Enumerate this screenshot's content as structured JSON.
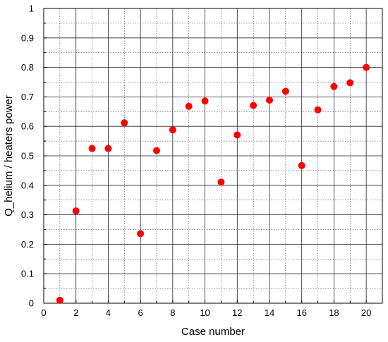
{
  "chart_data": {
    "type": "scatter",
    "title": "",
    "xlabel": "Case number",
    "ylabel": "Q_helium / heaters power",
    "xlim": [
      0,
      21
    ],
    "ylim": [
      0,
      1
    ],
    "x_major_ticks": [
      0,
      2,
      4,
      6,
      8,
      10,
      12,
      14,
      16,
      18,
      20
    ],
    "x_minor_ticks": [
      1,
      3,
      5,
      7,
      9,
      11,
      13,
      15,
      17,
      19,
      21
    ],
    "x_tick_labels": [
      "0",
      "2",
      "4",
      "6",
      "8",
      "10",
      "12",
      "14",
      "16",
      "18",
      "20"
    ],
    "y_major_ticks": [
      0,
      0.1,
      0.2,
      0.3,
      0.4,
      0.5,
      0.6,
      0.7,
      0.8,
      0.9,
      1
    ],
    "y_minor_ticks": [
      0.05,
      0.15,
      0.25,
      0.35,
      0.45,
      0.55,
      0.65,
      0.75,
      0.85,
      0.95
    ],
    "y_tick_labels": [
      "0",
      "0.1",
      "0.2",
      "0.3",
      "0.4",
      "0.5",
      "0.6",
      "0.7",
      "0.8",
      "0.9",
      "1"
    ],
    "grid": true,
    "marker_color": "#ff0000",
    "points": [
      {
        "x": 1,
        "y": 0.01
      },
      {
        "x": 2,
        "y": 0.313
      },
      {
        "x": 3,
        "y": 0.525
      },
      {
        "x": 4,
        "y": 0.525
      },
      {
        "x": 5,
        "y": 0.612
      },
      {
        "x": 6,
        "y": 0.236
      },
      {
        "x": 7,
        "y": 0.518
      },
      {
        "x": 8,
        "y": 0.588
      },
      {
        "x": 9,
        "y": 0.668
      },
      {
        "x": 10,
        "y": 0.686
      },
      {
        "x": 11,
        "y": 0.411
      },
      {
        "x": 12,
        "y": 0.571
      },
      {
        "x": 13,
        "y": 0.671
      },
      {
        "x": 14,
        "y": 0.689
      },
      {
        "x": 15,
        "y": 0.719
      },
      {
        "x": 16,
        "y": 0.467
      },
      {
        "x": 17,
        "y": 0.656
      },
      {
        "x": 18,
        "y": 0.735
      },
      {
        "x": 19,
        "y": 0.748
      },
      {
        "x": 20,
        "y": 0.8
      }
    ]
  }
}
